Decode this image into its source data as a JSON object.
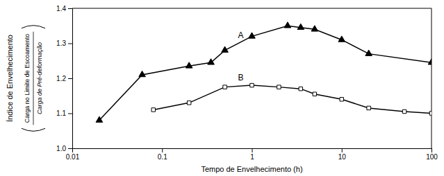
{
  "chart_data": {
    "type": "line",
    "x_label": "Tempo de Envelhecimento (h)",
    "y_label": "Índice de Envelhecimento",
    "y_label_fraction": [
      "Carga no Limite de Escoamento",
      "Carga de Pré-deformação"
    ],
    "log": "x",
    "grid": false,
    "xlim": [
      0.01,
      100
    ],
    "ylim": [
      1.0,
      1.4
    ],
    "xticks": [
      0.01,
      0.1,
      1,
      10,
      100
    ],
    "yticks": [
      {
        "value": 1.0,
        "label": "1.0"
      },
      1.1,
      1.2,
      1.3,
      1.4
    ],
    "series": [
      {
        "x": [
          0.02,
          0.06,
          0.2,
          0.35,
          0.5,
          1.0,
          2.5,
          3.5,
          5.0,
          10.0,
          20.0,
          100.0
        ],
        "values": [
          1.08,
          1.21,
          1.235,
          1.245,
          1.28,
          1.32,
          1.35,
          1.345,
          1.34,
          1.31,
          1.27,
          1.245
        ],
        "color": "#000000",
        "marker": "triangle"
      },
      {
        "x": [
          0.08,
          0.2,
          0.5,
          1.0,
          2.0,
          3.5,
          5.0,
          10.0,
          20.0,
          50.0,
          100.0
        ],
        "values": [
          1.11,
          1.13,
          1.175,
          1.18,
          1.175,
          1.17,
          1.155,
          1.14,
          1.115,
          1.105,
          1.1
        ],
        "color": "#000000",
        "marker": "square-open"
      }
    ],
    "annotations": [
      {
        "text": "A",
        "x": 0.7,
        "y": 1.315
      },
      {
        "text": "B",
        "x": 0.7,
        "y": 1.195
      }
    ]
  }
}
